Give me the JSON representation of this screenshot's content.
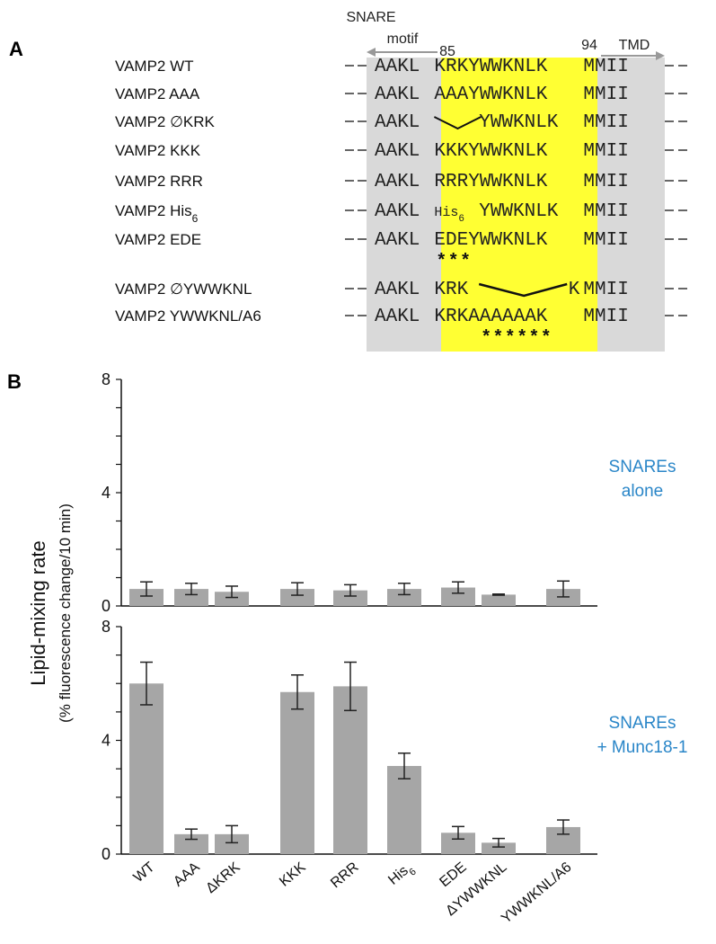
{
  "panel_a": {
    "label": "A",
    "header": {
      "snare_motif_line1": "SNARE",
      "snare_motif_line2": "motif",
      "pos_start": "85",
      "pos_end": "94",
      "tmd": "TMD"
    },
    "rows": [
      {
        "name": "VAMP2 WT",
        "prefix": "AAKL",
        "mid": "KRKYWWKNLK",
        "suffix": "MMII"
      },
      {
        "name": "VAMP2 AAA",
        "prefix": "AAKL",
        "mid": "AAAYWWKNLK",
        "suffix": "MMII"
      },
      {
        "name": "VAMP2 ∅KRK",
        "prefix": "AAKL",
        "mid": "YWWKNLK",
        "suffix": "MMII"
      },
      {
        "name": "VAMP2 KKK",
        "prefix": "AAKL",
        "mid": "KKKYWWKNLK",
        "suffix": "MMII"
      },
      {
        "name": "VAMP2 RRR",
        "prefix": "AAKL",
        "mid": "RRRYWWKNLK",
        "suffix": "MMII"
      },
      {
        "name": "VAMP2 His",
        "name_sub": "6",
        "prefix": "AAKL",
        "mid": "His",
        "mid_sub": "6",
        "mid2": "YWWKNLK",
        "suffix": "MMII"
      },
      {
        "name": "VAMP2 EDE",
        "prefix": "AAKL",
        "mid": "EDEYWWKNLK",
        "suffix": "MMII",
        "stars": "* * *"
      },
      {
        "name": "VAMP2 ∅YWWKNL",
        "prefix": "AAKL",
        "mid": "KRK",
        "mid2": "K",
        "suffix": "MMII"
      },
      {
        "name": "VAMP2 YWWKNL/A6",
        "prefix": "AAKL",
        "mid": "KRKAAAAAAK",
        "suffix": "MMII",
        "stars": "* * * * * *"
      }
    ],
    "colors": {
      "gray_region": "#d9d9d9",
      "yellow_region": "#ffff33"
    }
  },
  "panel_b": {
    "label": "B",
    "ylabel": "Lipid-mixing rate",
    "ylabel_sub": "(% fluorescence change/10 min)"
  },
  "chart_data": [
    {
      "type": "bar",
      "title": "",
      "condition_label_line1": "SNAREs",
      "condition_label_line2": "alone",
      "categories": [
        "WT",
        "AAA",
        "ΔKRK",
        "KKK",
        "RRR",
        "His6",
        "EDE",
        "ΔYWWKNL",
        "YWWKNL/A6"
      ],
      "values": [
        0.6,
        0.6,
        0.5,
        0.6,
        0.55,
        0.6,
        0.65,
        0.4,
        0.6
      ],
      "errors": [
        0.25,
        0.2,
        0.2,
        0.22,
        0.2,
        0.2,
        0.2,
        0.02,
        0.28
      ],
      "ylim": [
        0,
        8
      ],
      "yticks": [
        0,
        4,
        8
      ],
      "bar_color": "#a6a6a6"
    },
    {
      "type": "bar",
      "title": "",
      "condition_label_line1": "SNAREs",
      "condition_label_line2": "+ Munc18-1",
      "categories": [
        "WT",
        "AAA",
        "ΔKRK",
        "KKK",
        "RRR",
        "His6",
        "EDE",
        "ΔYWWKNL",
        "YWWKNL/A6"
      ],
      "values": [
        6.0,
        0.7,
        0.7,
        5.7,
        5.9,
        3.1,
        0.75,
        0.4,
        0.95
      ],
      "errors": [
        0.75,
        0.18,
        0.3,
        0.6,
        0.85,
        0.45,
        0.22,
        0.15,
        0.25
      ],
      "ylim": [
        0,
        8
      ],
      "yticks": [
        0,
        4,
        8
      ],
      "bar_color": "#a6a6a6"
    }
  ]
}
